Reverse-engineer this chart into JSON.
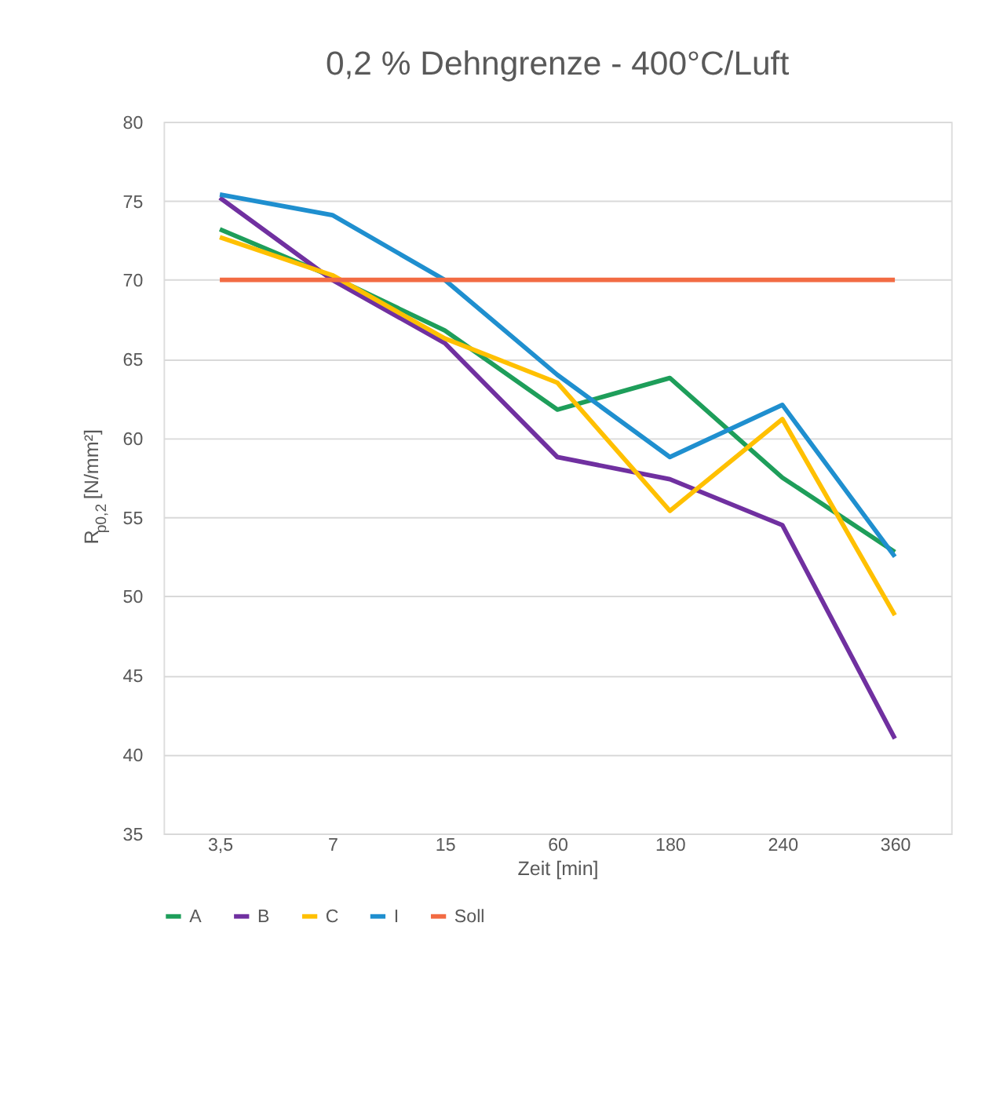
{
  "chart_data": {
    "type": "line",
    "title": "0,2 % Dehngrenze - 400°C/Luft",
    "xlabel": "Zeit [min]",
    "ylabel": "R$_{p0,2}$ [N/mm²]",
    "categories": [
      "3,5",
      "7",
      "15",
      "60",
      "180",
      "240",
      "360"
    ],
    "series": [
      {
        "name": "A",
        "color": "#1e9e5a",
        "values": [
          73.2,
          70.2,
          66.8,
          61.8,
          63.8,
          57.5,
          52.8
        ]
      },
      {
        "name": "B",
        "color": "#7030a0",
        "values": [
          75.2,
          70,
          66,
          58.8,
          57.4,
          54.5,
          41
        ]
      },
      {
        "name": "C",
        "color": "#ffc000",
        "values": [
          72.7,
          70.3,
          66.3,
          63.5,
          55.4,
          61.2,
          48.8
        ]
      },
      {
        "name": "I",
        "color": "#1f8fcf",
        "values": [
          75.4,
          74.1,
          70,
          64,
          58.8,
          62.1,
          52.5
        ]
      },
      {
        "name": "Soll",
        "color": "#f26b43",
        "values": [
          70,
          70,
          70,
          70,
          70,
          70,
          70
        ]
      }
    ],
    "ylim": [
      35,
      80
    ],
    "yticks": [
      35,
      40,
      45,
      50,
      55,
      60,
      65,
      70,
      75,
      80
    ],
    "grid": "y",
    "legend": "bottom",
    "marker": "none",
    "line_style": "solid"
  }
}
